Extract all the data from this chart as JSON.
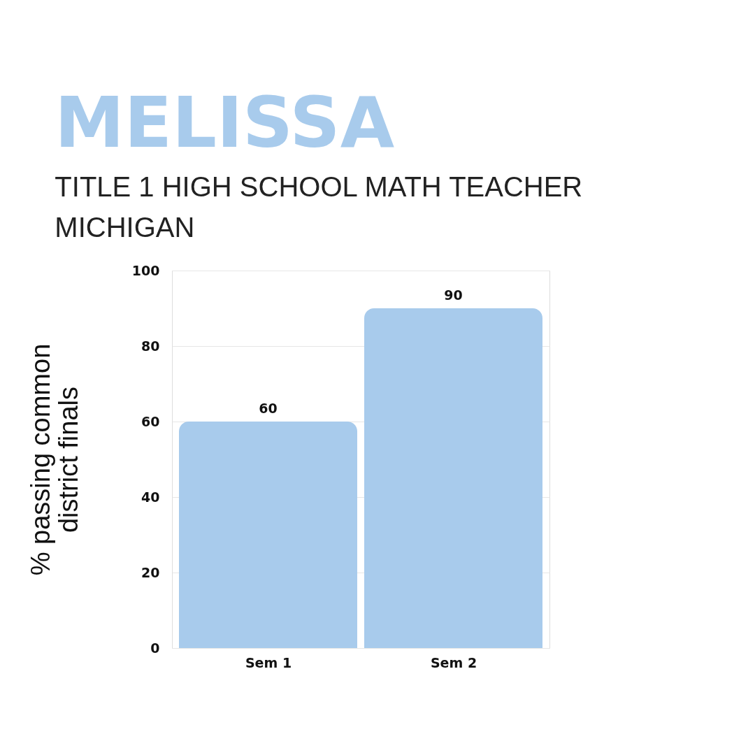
{
  "chart_data": {
    "type": "bar",
    "title": "MELISSA",
    "subtitle": "TITLE 1 HIGH SCHOOL MATH TEACHER\nMICHIGAN",
    "ylabel": "% passing common\ndistrict finals",
    "categories": [
      "Sem 1",
      "Sem 2"
    ],
    "series": [
      {
        "color": "#a8cbec",
        "values": [
          60,
          90
        ]
      }
    ],
    "ylim": [
      0,
      100
    ],
    "yticks": [
      0,
      20,
      40,
      60,
      80,
      100
    ],
    "grid": "y",
    "data_labels": true
  }
}
